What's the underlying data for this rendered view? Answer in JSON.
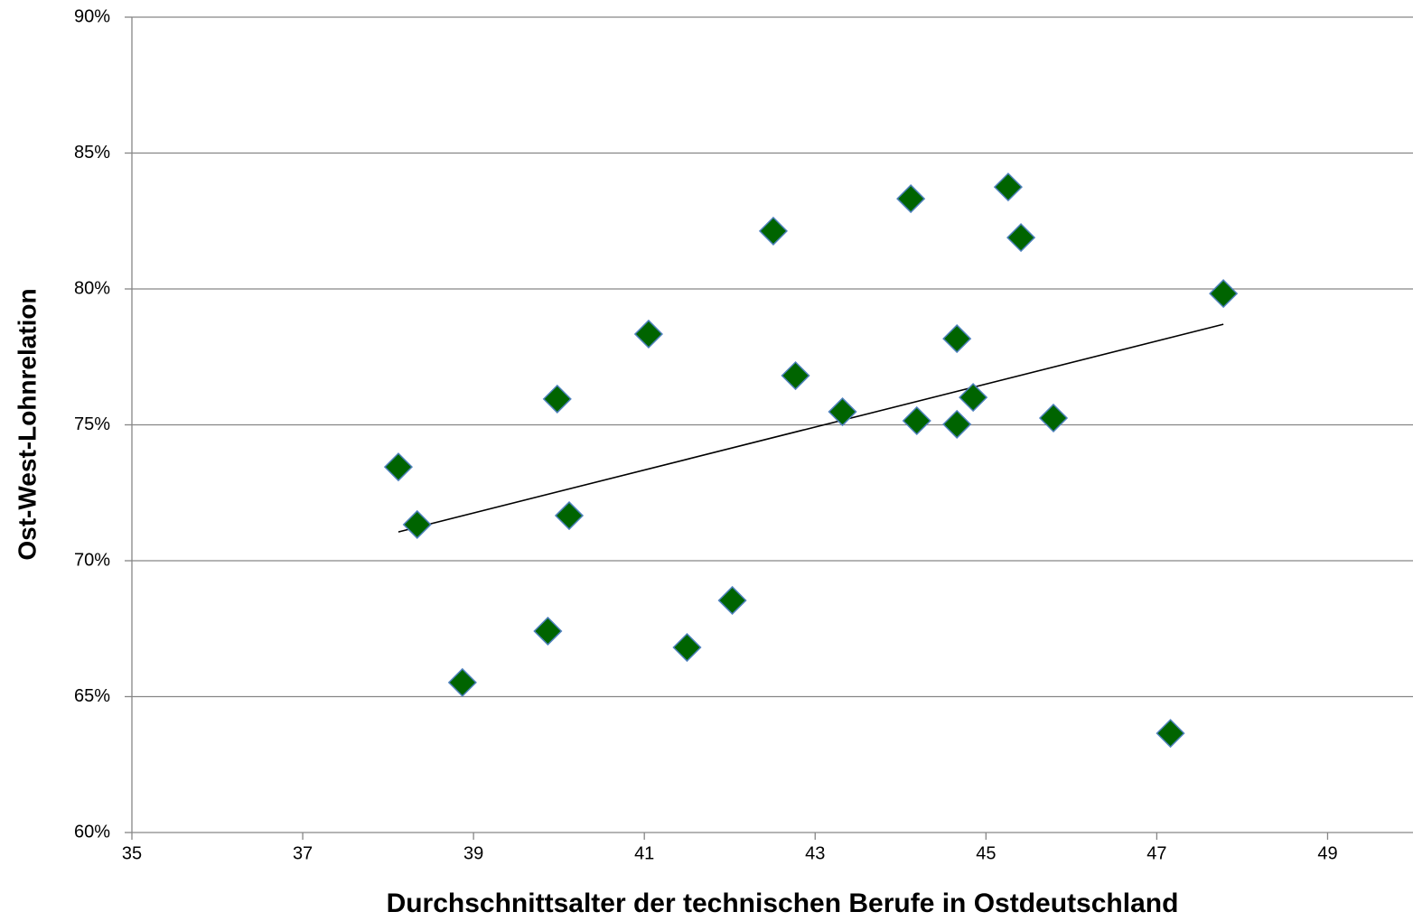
{
  "chart_data": {
    "type": "scatter",
    "xlabel": "Durchschnittsalter der technischen Berufe in Ostdeutschland",
    "ylabel": "Ost-West-Lohnrelation",
    "xlim": [
      35,
      50
    ],
    "xticks": [
      35,
      37,
      39,
      41,
      43,
      45,
      47,
      49
    ],
    "ylim": [
      60,
      90
    ],
    "yticks": [
      {
        "value": 60,
        "label": "60%"
      },
      {
        "value": 65,
        "label": "65%"
      },
      {
        "value": 70,
        "label": "70%"
      },
      {
        "value": 75,
        "label": "75%"
      },
      {
        "value": 80,
        "label": "80%"
      },
      {
        "value": 85,
        "label": "85%"
      },
      {
        "value": 90,
        "label": "90%"
      }
    ],
    "grid": true,
    "series": [
      {
        "color": "#006400",
        "edgecolor": "#4f81bd",
        "x": [
          38.12,
          38.34,
          38.87,
          39.87,
          39.98,
          40.12,
          41.05,
          41.5,
          42.03,
          42.51,
          42.77,
          43.32,
          44.12,
          44.19,
          44.66,
          44.66,
          44.85,
          45.26,
          45.41,
          45.79,
          47.16,
          47.78
        ],
        "y": [
          73.45,
          71.33,
          65.52,
          67.41,
          75.95,
          71.66,
          78.34,
          66.81,
          68.54,
          82.13,
          76.81,
          75.48,
          83.32,
          75.15,
          78.17,
          75.02,
          76.01,
          83.75,
          81.89,
          75.25,
          63.65,
          79.83
        ]
      }
    ],
    "trendline": {
      "color": "#000000",
      "x": [
        38.12,
        47.78
      ],
      "y": [
        71.06,
        78.7
      ]
    }
  }
}
